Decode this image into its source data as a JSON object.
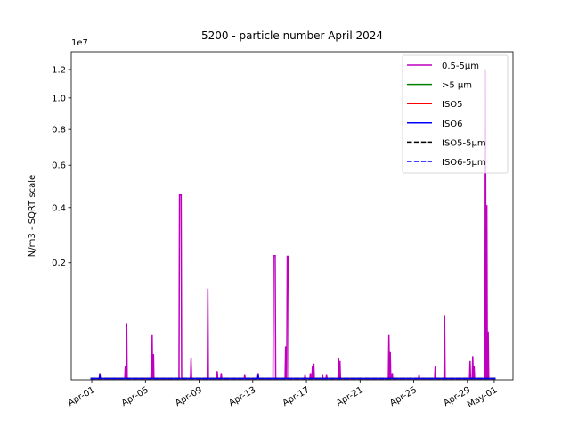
{
  "chart_data": {
    "type": "line",
    "title": "5200 - particle number April 2024",
    "y_label": "N/m3 - SQRT scale",
    "y_offset_label": "1e7",
    "yscale": "sqrt",
    "ylim": [
      0.003,
      1.334
    ],
    "yticks": [
      0.2,
      0.4,
      0.6,
      0.8,
      {
        "value": 1.0,
        "label": "1.0"
      },
      1.2
    ],
    "xlim": [
      -1.53,
      31.4
    ],
    "xticks": [
      {
        "value": 0,
        "label": "Apr-01"
      },
      {
        "value": 4,
        "label": "Apr-05"
      },
      {
        "value": 8,
        "label": "Apr-09"
      },
      {
        "value": 12,
        "label": "Apr-13"
      },
      {
        "value": 16,
        "label": "Apr-17"
      },
      {
        "value": 20,
        "label": "Apr-21"
      },
      {
        "value": 24,
        "label": "Apr-25"
      },
      {
        "value": 28,
        "label": "Apr-29"
      },
      {
        "value": 30,
        "label": "May-01"
      }
    ],
    "legend": "upper right",
    "series": [
      {
        "name": "0.5-5µm",
        "color": "#bf00bf",
        "dash": false,
        "x": [
          -0.1,
          0.56,
          0.6,
          0.64,
          2.46,
          2.5,
          2.54,
          2.56,
          2.6,
          2.64,
          4.41,
          4.45,
          4.48,
          4.5,
          4.53,
          4.57,
          4.6,
          4.63,
          6.5,
          6.54,
          6.66,
          6.7,
          7.36,
          7.4,
          7.44,
          8.61,
          8.65,
          8.69,
          9.31,
          9.35,
          9.39,
          9.61,
          9.65,
          9.69,
          11.36,
          11.4,
          11.44,
          12.36,
          12.4,
          12.44,
          13.51,
          13.55,
          13.67,
          13.71,
          14.41,
          14.45,
          14.49,
          14.53,
          14.57,
          14.65,
          14.69,
          15.86,
          15.9,
          15.94,
          16.26,
          16.3,
          16.34,
          16.41,
          16.45,
          16.49,
          16.51,
          16.55,
          16.59,
          17.16,
          17.2,
          17.24,
          17.46,
          17.5,
          17.54,
          18.36,
          18.4,
          18.44,
          18.46,
          18.5,
          18.54,
          22.11,
          22.15,
          22.19,
          22.21,
          22.25,
          22.29,
          22.36,
          22.4,
          22.44,
          24.36,
          24.4,
          24.44,
          25.56,
          25.6,
          25.64,
          26.26,
          26.3,
          26.34,
          28.16,
          28.2,
          28.24,
          28.36,
          28.4,
          28.44,
          28.46,
          28.5,
          28.54,
          29.31,
          29.35,
          29.39,
          29.41,
          29.45,
          29.49,
          29.51,
          29.55,
          29.59,
          30.1
        ],
        "values": [
          0.0035,
          0.0035,
          0.006,
          0.0035,
          0.0035,
          0.01,
          0.0035,
          0.0035,
          0.06,
          0.0035,
          0.0035,
          0.012,
          0.0035,
          0.042,
          0.0035,
          0.0035,
          0.02,
          0.0035,
          0.0035,
          0.455,
          0.455,
          0.0035,
          0.0035,
          0.016,
          0.0035,
          0.0035,
          0.13,
          0.0035,
          0.0035,
          0.007,
          0.0035,
          0.0035,
          0.006,
          0.0035,
          0.0035,
          0.005,
          0.0035,
          0.0035,
          0.006,
          0.0035,
          0.0035,
          0.222,
          0.222,
          0.0035,
          0.0035,
          0.028,
          0.0035,
          0.0035,
          0.22,
          0.22,
          0.0035,
          0.0035,
          0.005,
          0.0035,
          0.0035,
          0.006,
          0.0035,
          0.0035,
          0.01,
          0.0035,
          0.0035,
          0.012,
          0.0035,
          0.0035,
          0.005,
          0.0035,
          0.0035,
          0.005,
          0.0035,
          0.0035,
          0.016,
          0.0035,
          0.0035,
          0.014,
          0.0035,
          0.0035,
          0.042,
          0.0035,
          0.0035,
          0.022,
          0.0035,
          0.0035,
          0.006,
          0.0035,
          0.0035,
          0.005,
          0.0035,
          0.0035,
          0.01,
          0.0035,
          0.0035,
          0.074,
          0.0035,
          0.0035,
          0.014,
          0.0035,
          0.0035,
          0.018,
          0.0035,
          0.0035,
          0.01,
          0.0035,
          0.0035,
          1.2,
          0.0035,
          0.0035,
          0.41,
          0.0035,
          0.0035,
          0.047,
          0.0035,
          0.0035
        ]
      },
      {
        "name": ">5 µm",
        "color": "#008000",
        "dash": false,
        "x": [
          -0.1,
          30.1
        ],
        "values": [
          0.0035,
          0.0035
        ]
      },
      {
        "name": "ISO5",
        "color": "#ff0000",
        "dash": false,
        "x": [
          -0.1,
          30.1
        ],
        "values": [
          0.0035,
          0.0035
        ]
      },
      {
        "name": "ISO6",
        "color": "#0000ff",
        "dash": false,
        "x": [
          -0.1,
          0.56,
          0.6,
          0.64,
          12.36,
          12.4,
          12.44,
          30.1
        ],
        "values": [
          0.0035,
          0.0035,
          0.005,
          0.0035,
          0.0035,
          0.005,
          0.0035,
          0.0035
        ]
      },
      {
        "name": "ISO5-5µm",
        "color": "#000000",
        "dash": true,
        "x": [
          -0.1,
          30.1
        ],
        "values": [
          0.0035,
          0.0035
        ]
      },
      {
        "name": "ISO6-5µm",
        "color": "#0000ff",
        "dash": true,
        "x": [
          -0.1,
          30.1
        ],
        "values": [
          0.0035,
          0.0035
        ]
      }
    ]
  }
}
